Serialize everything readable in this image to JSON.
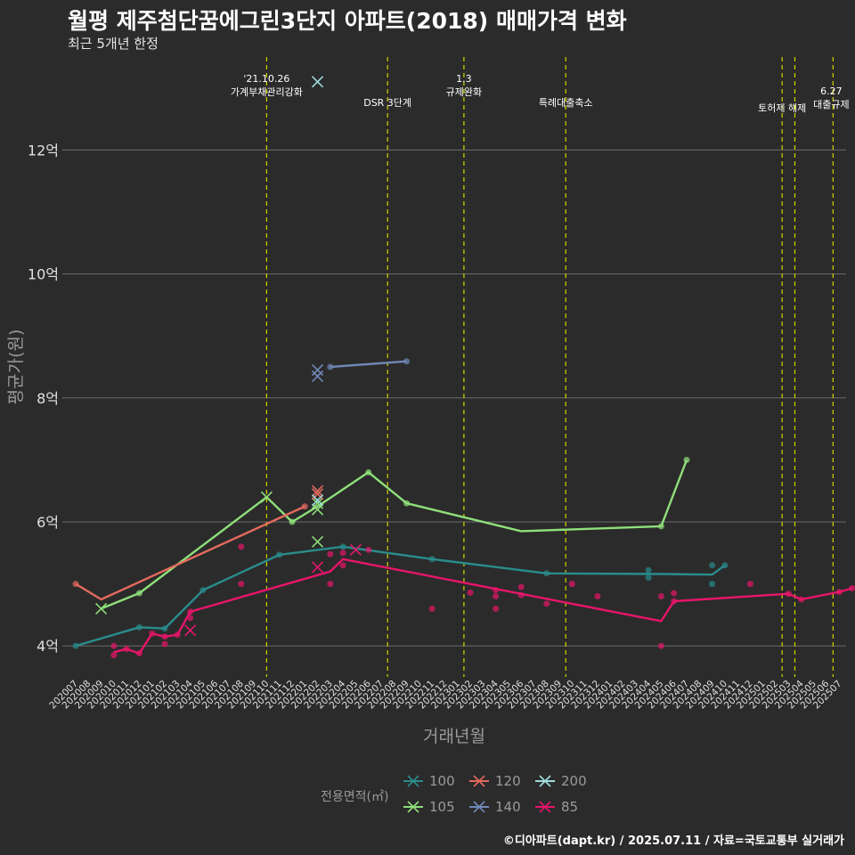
{
  "title": "월평 제주첨단꿈에그린3단지 아파트(2018) 매매가격 변화",
  "subtitle": "최근 5개년 한정",
  "caption": "©디아파트(dapt.kr) / 2025.07.11 / 자료=국토교통부 실거래가",
  "chart_data": {
    "type": "line",
    "title": "월평 제주첨단꿈에그린3단지 아파트(2018) 매매가격 변화",
    "xlabel": "거래년월",
    "ylabel": "평균가(원)",
    "ylim": [
      3.5,
      13.5
    ],
    "yticks": [
      4,
      6,
      8,
      10,
      12
    ],
    "ytick_labels": [
      "4억",
      "6억",
      "8억",
      "10억",
      "12억"
    ],
    "categories": [
      "202007",
      "202008",
      "202009",
      "202010",
      "202011",
      "202012",
      "202101",
      "202102",
      "202103",
      "202104",
      "202105",
      "202106",
      "202107",
      "202108",
      "202109",
      "202110",
      "202111",
      "202112",
      "202201",
      "202202",
      "202203",
      "202204",
      "202205",
      "202206",
      "202207",
      "202208",
      "202209",
      "202210",
      "202211",
      "202212",
      "202301",
      "202302",
      "202303",
      "202304",
      "202305",
      "202306",
      "202307",
      "202308",
      "202309",
      "202310",
      "202311",
      "202312",
      "202401",
      "202402",
      "202403",
      "202404",
      "202405",
      "202406",
      "202407",
      "202408",
      "202409",
      "202410",
      "202411",
      "202412",
      "202501",
      "202502",
      "202503",
      "202504",
      "202505",
      "202506",
      "202507"
    ],
    "events": [
      {
        "index": 15,
        "label": "'21.10.26\n가계부채관리강화"
      },
      {
        "index": 24.5,
        "label": "DSR 3단계"
      },
      {
        "index": 30.5,
        "label": "1.3\n규제완화"
      },
      {
        "index": 38.5,
        "label": "특례대출축소"
      },
      {
        "index": 55.5,
        "label": "토허제 해제"
      },
      {
        "index": 56.5,
        "label": ""
      },
      {
        "index": 59.5,
        "label": "6.27\n대출규제"
      }
    ],
    "series": [
      {
        "name": "100",
        "color": "#2a8c8c",
        "line": [
          [
            0,
            4.0
          ],
          [
            5,
            4.3
          ],
          [
            7,
            4.28
          ],
          [
            10,
            4.9
          ],
          [
            16,
            5.47
          ],
          [
            21,
            5.6
          ],
          [
            28,
            5.4
          ],
          [
            37,
            5.17
          ],
          [
            46,
            5.16
          ],
          [
            50,
            5.15
          ],
          [
            51,
            5.3
          ]
        ],
        "points": [
          [
            0,
            4.0
          ],
          [
            5,
            4.3
          ],
          [
            7,
            4.28
          ],
          [
            10,
            4.9
          ],
          [
            16,
            5.47
          ],
          [
            21,
            5.6
          ],
          [
            28,
            5.4
          ],
          [
            37,
            5.17
          ],
          [
            45,
            5.22
          ],
          [
            45,
            5.1
          ],
          [
            50,
            5.3
          ],
          [
            50,
            5.0
          ],
          [
            51,
            5.3
          ]
        ],
        "crosses": []
      },
      {
        "name": "105",
        "color": "#8fdf7a",
        "line": [
          [
            2,
            4.6
          ],
          [
            5,
            4.85
          ],
          [
            15,
            6.4
          ],
          [
            17,
            6.0
          ],
          [
            19,
            6.25
          ],
          [
            23,
            6.8
          ],
          [
            26,
            6.3
          ],
          [
            35,
            5.85
          ],
          [
            46,
            5.93
          ],
          [
            48,
            7.0
          ]
        ],
        "points": [
          [
            5,
            4.85
          ],
          [
            17,
            6.0
          ],
          [
            23,
            6.8
          ],
          [
            26,
            6.3
          ],
          [
            46,
            5.93
          ],
          [
            48,
            7.0
          ]
        ],
        "crosses": [
          [
            2,
            4.6
          ],
          [
            15,
            6.4
          ],
          [
            19,
            6.2
          ],
          [
            19,
            6.3
          ],
          [
            19,
            5.68
          ]
        ]
      },
      {
        "name": "120",
        "color": "#e46a5e",
        "line": [
          [
            0,
            5.0
          ],
          [
            2,
            4.75
          ],
          [
            18,
            6.25
          ]
        ],
        "points": [
          [
            0,
            5.0
          ],
          [
            18,
            6.25
          ]
        ],
        "crosses": [
          [
            19,
            6.5
          ],
          [
            19,
            6.45
          ]
        ]
      },
      {
        "name": "140",
        "color": "#7088b8",
        "line": [
          [
            20,
            8.5
          ],
          [
            26,
            8.59
          ]
        ],
        "points": [
          [
            20,
            8.5
          ],
          [
            26,
            8.59
          ]
        ],
        "crosses": [
          [
            19,
            8.45
          ],
          [
            19,
            8.35
          ]
        ]
      },
      {
        "name": "200",
        "color": "#9fdcdc",
        "line": [],
        "points": [],
        "crosses": [
          [
            19,
            13.1
          ],
          [
            19,
            6.35
          ]
        ]
      },
      {
        "name": "85",
        "color": "#e8156b",
        "line": [
          [
            3,
            3.9
          ],
          [
            4,
            3.95
          ],
          [
            5,
            3.88
          ],
          [
            6,
            4.2
          ],
          [
            7,
            4.15
          ],
          [
            8,
            4.18
          ],
          [
            9,
            4.55
          ],
          [
            20,
            5.2
          ],
          [
            21,
            5.4
          ],
          [
            46,
            4.4
          ],
          [
            47,
            4.72
          ],
          [
            56,
            4.84
          ],
          [
            57,
            4.75
          ],
          [
            60,
            4.87
          ],
          [
            61,
            4.93
          ]
        ],
        "points": [
          [
            3,
            4.0
          ],
          [
            3,
            3.85
          ],
          [
            4,
            3.95
          ],
          [
            5,
            3.88
          ],
          [
            6,
            4.2
          ],
          [
            7,
            4.15
          ],
          [
            7,
            4.03
          ],
          [
            8,
            4.18
          ],
          [
            9,
            4.45
          ],
          [
            9,
            4.55
          ],
          [
            13,
            5.6
          ],
          [
            13,
            5.0
          ],
          [
            20,
            5.48
          ],
          [
            20,
            5.0
          ],
          [
            21,
            5.5
          ],
          [
            21,
            5.3
          ],
          [
            23,
            5.55
          ],
          [
            28,
            4.6
          ],
          [
            31,
            4.86
          ],
          [
            33,
            4.9
          ],
          [
            33,
            4.8
          ],
          [
            33,
            4.6
          ],
          [
            35,
            4.95
          ],
          [
            35,
            4.82
          ],
          [
            37,
            4.68
          ],
          [
            39,
            5.0
          ],
          [
            41,
            4.8
          ],
          [
            46,
            4.8
          ],
          [
            46,
            4.0
          ],
          [
            47,
            4.85
          ],
          [
            47,
            4.72
          ],
          [
            53,
            5.0
          ],
          [
            56,
            4.84
          ],
          [
            57,
            4.75
          ],
          [
            60,
            4.87
          ],
          [
            61,
            4.93
          ]
        ],
        "crosses": [
          [
            9,
            4.25
          ],
          [
            19,
            5.27
          ],
          [
            22,
            5.55
          ]
        ]
      }
    ],
    "legend_title": "전용면적(㎡)",
    "legend_order": [
      "100",
      "120",
      "200",
      "105",
      "140",
      "85"
    ],
    "legend_position": "bottom"
  }
}
